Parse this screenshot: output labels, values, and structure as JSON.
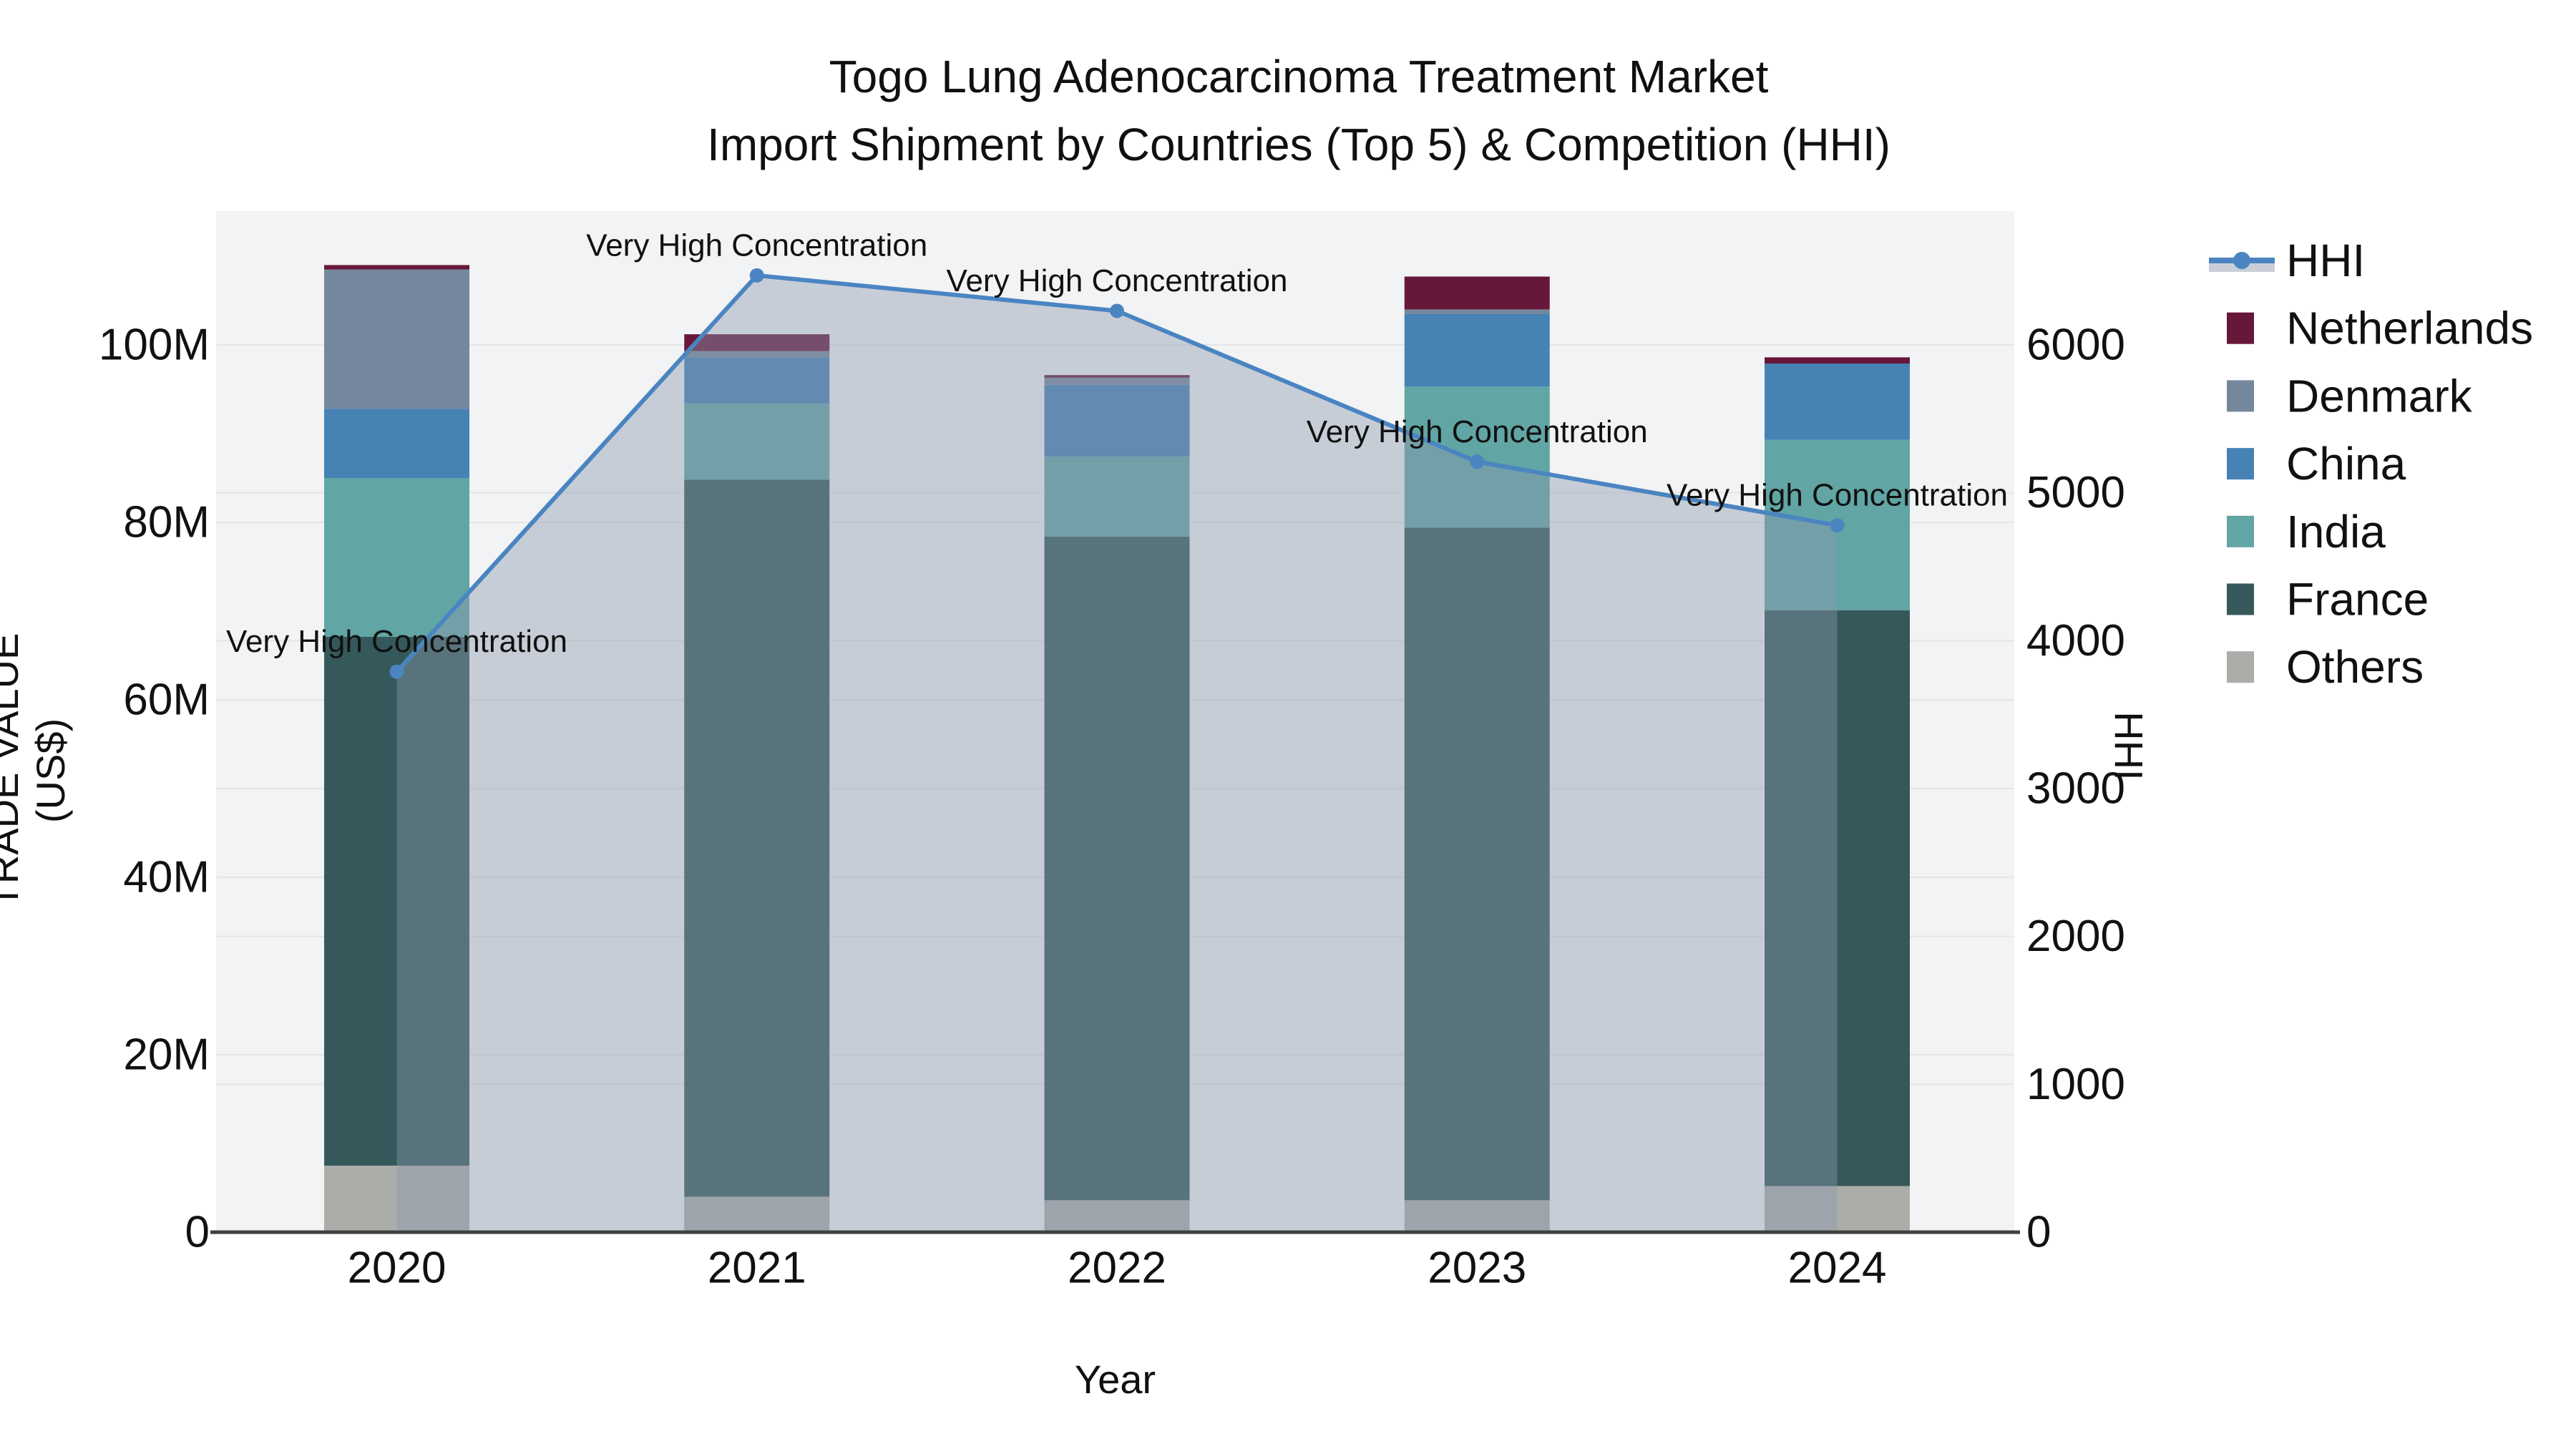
{
  "title": {
    "line1": "Togo Lung Adenocarcinoma Treatment Market",
    "line2": "Import Shipment by Countries (Top 5) & Competition (HHI)"
  },
  "axes": {
    "x_title": "Year",
    "y_left_title": "TRADE VALUE (US$)",
    "y_right_title": "HHI",
    "y_left_ticks": [
      "0",
      "20M",
      "40M",
      "60M",
      "80M",
      "100M"
    ],
    "y_left_tick_values": [
      0,
      20,
      40,
      60,
      80,
      100
    ],
    "y_right_ticks": [
      "0",
      "1000",
      "2000",
      "3000",
      "4000",
      "5000",
      "6000"
    ],
    "y_right_tick_values": [
      0,
      1000,
      2000,
      3000,
      4000,
      5000,
      6000
    ]
  },
  "legend": [
    {
      "label": "HHI",
      "type": "line",
      "color": "#4a85c2"
    },
    {
      "label": "Netherlands",
      "type": "bar",
      "color": "#67183a"
    },
    {
      "label": "Denmark",
      "type": "bar",
      "color": "#75879c"
    },
    {
      "label": "China",
      "type": "bar",
      "color": "#4682b4"
    },
    {
      "label": "India",
      "type": "bar",
      "color": "#61a5a4"
    },
    {
      "label": "France",
      "type": "bar",
      "color": "#35595a"
    },
    {
      "label": "Others",
      "type": "bar",
      "color": "#abada9"
    }
  ],
  "colors": {
    "plot_bg": "#f2f3f4",
    "grid": "#e4e5e7",
    "axis_line": "#3f3f3f",
    "hhi_line": "#4a85c2",
    "hhi_area_fill": "rgba(140,152,175,0.42)",
    "text": "#111111"
  },
  "chart_data": {
    "type": "bar+line",
    "title": "Togo Lung Adenocarcinoma Treatment Market Import Shipment by Countries (Top 5) & Competition (HHI)",
    "categories": [
      "2020",
      "2021",
      "2022",
      "2023",
      "2024"
    ],
    "xlabel": "Year",
    "ylabel_left": "TRADE VALUE (US$)",
    "ylabel_right": "HHI",
    "bar_unit": "USD millions",
    "ylim_left_millions": [
      0,
      115
    ],
    "ylim_right_hhi": [
      0,
      6900
    ],
    "grid": "on",
    "legend_position": "right",
    "series": [
      {
        "name": "Others",
        "color": "#abada9",
        "values": [
          7.5,
          4.0,
          3.6,
          3.6,
          5.2
        ]
      },
      {
        "name": "France",
        "color": "#35595a",
        "values": [
          59.6,
          80.8,
          74.8,
          75.8,
          64.9
        ]
      },
      {
        "name": "India",
        "color": "#61a5a4",
        "values": [
          17.9,
          8.6,
          9.0,
          15.9,
          19.2
        ]
      },
      {
        "name": "China",
        "color": "#4682b4",
        "values": [
          7.8,
          5.2,
          8.1,
          8.2,
          8.6
        ]
      },
      {
        "name": "Denmark",
        "color": "#75879c",
        "values": [
          15.7,
          0.7,
          0.8,
          0.5,
          0.0
        ]
      },
      {
        "name": "Netherlands",
        "color": "#67183a",
        "values": [
          0.5,
          1.9,
          0.3,
          3.7,
          0.7
        ]
      }
    ],
    "line_series": {
      "name": "HHI",
      "color": "#4a85c2",
      "area_fill": "rgba(140,152,175,0.42)",
      "values": [
        3790,
        6470,
        6230,
        5210,
        4780
      ],
      "annotation": "Very High Concentration"
    }
  }
}
